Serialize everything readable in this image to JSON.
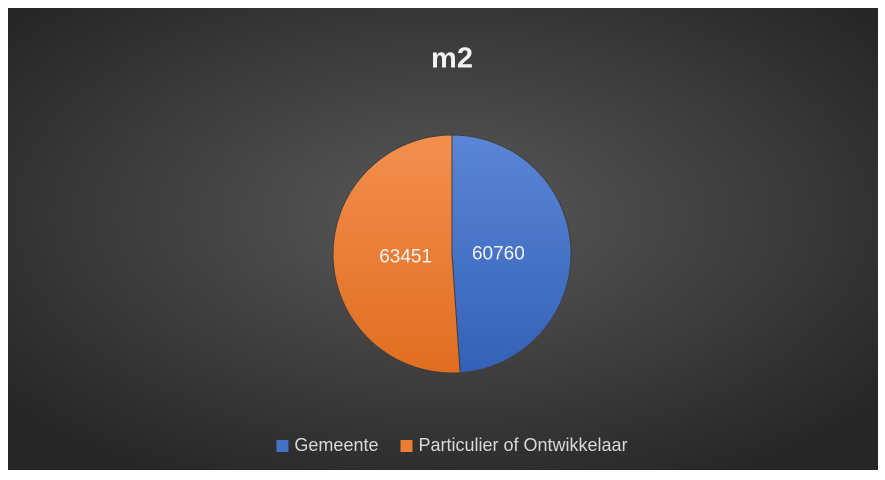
{
  "chart_data": {
    "type": "pie",
    "title": "m2",
    "categories": [
      "Gemeente",
      "Particulier of Ontwikkelaar"
    ],
    "values": [
      60760,
      63451
    ],
    "colors": [
      "#4472c4",
      "#ed7d31"
    ],
    "legend": "bottom"
  }
}
